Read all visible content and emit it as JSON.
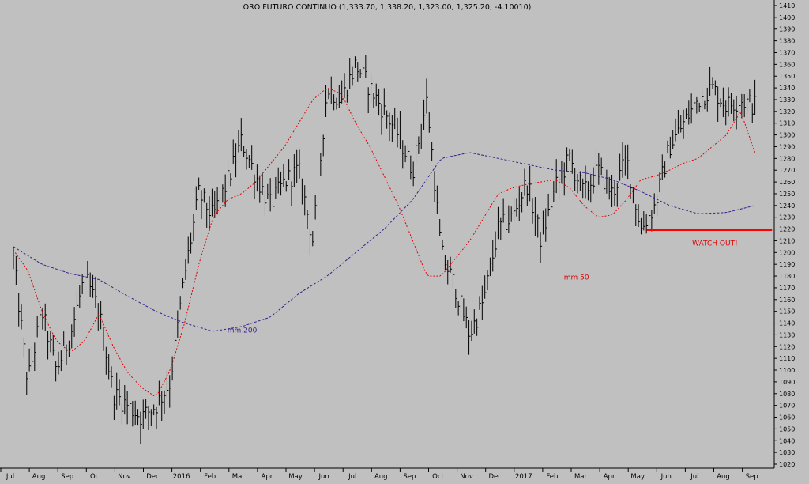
{
  "chart_data": {
    "type": "line",
    "title": "ORO FUTURO CONTINUO (1,333.70, 1,338.20, 1,323.00, 1,325.20, -4.10010)",
    "ylim": [
      1020,
      1415
    ],
    "y_tick_step": 10,
    "grid": false,
    "x_month_labels": [
      "Jul",
      "Aug",
      "Sep",
      "Oct",
      "Nov",
      "Dec",
      "2016",
      "Feb",
      "Mar",
      "Apr",
      "May",
      "Jun",
      "Jul",
      "Aug",
      "Sep",
      "Oct",
      "Nov",
      "Dec",
      "2017",
      "Feb",
      "Mar",
      "Apr",
      "May",
      "Jun",
      "Jul",
      "Aug",
      "Sep"
    ],
    "x_month_positions": [
      0,
      1,
      2,
      3,
      4,
      5,
      6,
      7,
      8,
      9,
      10,
      11,
      12,
      13,
      14,
      15,
      16,
      17,
      18,
      19,
      20,
      21,
      22,
      23,
      24,
      25,
      26
    ],
    "series": [
      {
        "name": "",
        "style": "ohlc-bars",
        "color": "#000000",
        "x": [
          0,
          0.5,
          1,
          1.5,
          2,
          2.5,
          3,
          3.5,
          4,
          4.5,
          5,
          5.5,
          6,
          6.5,
          7,
          7.5,
          8,
          8.5,
          9,
          9.5,
          10,
          10.5,
          11,
          11.5,
          12,
          12.5,
          13,
          13.5,
          14,
          14.5,
          15,
          15.5,
          16,
          16.5,
          17,
          17.5,
          18,
          18.5,
          19,
          19.5,
          20,
          20.5,
          21,
          21.5,
          22,
          22.5,
          23,
          23.5,
          24,
          24.5,
          25,
          25.5,
          26
        ],
        "values": [
          1195,
          1090,
          1150,
          1100,
          1130,
          1180,
          1150,
          1080,
          1070,
          1060,
          1070,
          1090,
          1180,
          1250,
          1230,
          1260,
          1295,
          1265,
          1240,
          1260,
          1270,
          1210,
          1340,
          1330,
          1360,
          1340,
          1320,
          1300,
          1270,
          1330,
          1200,
          1170,
          1130,
          1160,
          1220,
          1230,
          1260,
          1210,
          1255,
          1280,
          1250,
          1270,
          1250,
          1280,
          1220,
          1240,
          1290,
          1310,
          1330,
          1340,
          1325,
          1330,
          1325
        ]
      },
      {
        "name": "mm 50",
        "style": "dotted",
        "color": "#e00000",
        "x": [
          0,
          0.5,
          1,
          1.5,
          2,
          2.5,
          3,
          3.5,
          4,
          4.5,
          5,
          5.5,
          6,
          6.5,
          7,
          7.5,
          8,
          8.5,
          9,
          9.5,
          10,
          10.5,
          11,
          11.5,
          12,
          12.5,
          13,
          13.5,
          14,
          14.5,
          15,
          15.5,
          16,
          16.5,
          17,
          17.5,
          18,
          18.5,
          19,
          19.5,
          20,
          20.5,
          21,
          21.5,
          22,
          22.5,
          23,
          23.5,
          24,
          24.5,
          25,
          25.5,
          26
        ],
        "values": [
          1202,
          1185,
          1150,
          1125,
          1115,
          1125,
          1148,
          1120,
          1098,
          1085,
          1077,
          1100,
          1140,
          1190,
          1230,
          1245,
          1250,
          1260,
          1275,
          1290,
          1310,
          1330,
          1340,
          1335,
          1310,
          1290,
          1265,
          1240,
          1210,
          1180,
          1180,
          1195,
          1210,
          1230,
          1250,
          1255,
          1258,
          1260,
          1262,
          1255,
          1240,
          1230,
          1232,
          1245,
          1262,
          1265,
          1270,
          1276,
          1280,
          1290,
          1300,
          1320,
          1285
        ]
      },
      {
        "name": "mm 200",
        "style": "dashed",
        "color": "#3b1e8c",
        "x": [
          0,
          1,
          2,
          3,
          4,
          5,
          6,
          7,
          8,
          9,
          10,
          11,
          12,
          13,
          14,
          15,
          16,
          17,
          18,
          19,
          20,
          21,
          22,
          23,
          24,
          25,
          26
        ],
        "values": [
          1205,
          1190,
          1182,
          1177,
          1163,
          1150,
          1140,
          1133,
          1137,
          1145,
          1165,
          1180,
          1200,
          1220,
          1245,
          1280,
          1285,
          1280,
          1275,
          1270,
          1268,
          1262,
          1252,
          1240,
          1233,
          1234,
          1240
        ]
      }
    ],
    "annotations": [
      {
        "text": "mm 50",
        "color": "#e00000",
        "x": 19.3,
        "y": 1177
      },
      {
        "text": "mm 200",
        "color": "#3b1e8c",
        "x": 7.5,
        "y": 1132
      },
      {
        "text": "WATCH OUT!",
        "color": "#e00000",
        "x": 23.8,
        "y": 1206
      }
    ],
    "support_line": {
      "value": 1219,
      "x_start": 22.2,
      "x_end": 26.6,
      "color": "#ff0000"
    }
  }
}
